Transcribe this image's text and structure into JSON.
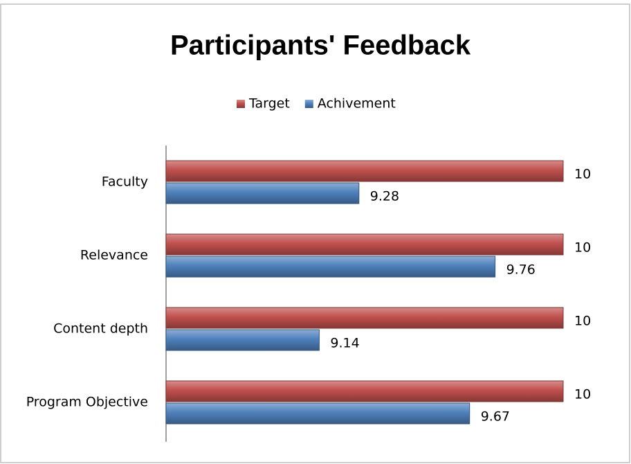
{
  "chart_data": {
    "type": "bar",
    "orientation": "horizontal",
    "title": "Participants' Feedback",
    "categories": [
      "Faculty",
      "Relevance",
      "Content depth",
      "Program Objective"
    ],
    "series": [
      {
        "name": "Target",
        "color": "#c0504d",
        "values": [
          10,
          10,
          10,
          10
        ]
      },
      {
        "name": "Achivement",
        "color": "#4f81bd",
        "values": [
          9.28,
          9.76,
          9.14,
          9.67
        ]
      }
    ],
    "xlim": [
      8.6,
      10.2
    ],
    "legend": "top",
    "grid": false
  }
}
